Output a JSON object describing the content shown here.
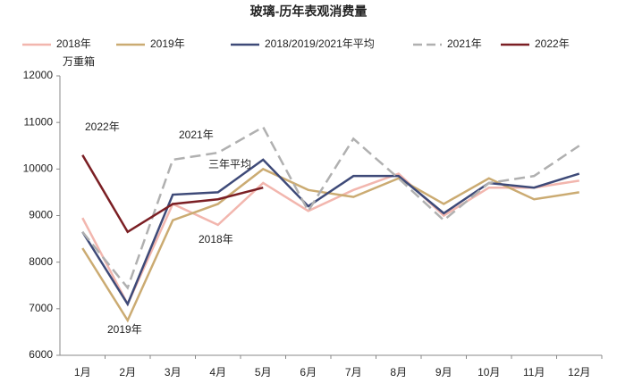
{
  "chart_data": {
    "type": "line",
    "title": "玻璃-历年表观消费量",
    "y_label": "万重箱",
    "categories": [
      "1月",
      "2月",
      "3月",
      "4月",
      "5月",
      "6月",
      "7月",
      "8月",
      "9月",
      "10月",
      "11月",
      "12月"
    ],
    "series": [
      {
        "name": "2018年",
        "color": "#f2b6ae",
        "dash": false,
        "values": [
          8950,
          7100,
          9250,
          8800,
          9700,
          9100,
          9550,
          9900,
          9000,
          9600,
          9600,
          9750
        ]
      },
      {
        "name": "2019年",
        "color": "#cbab72",
        "dash": false,
        "values": [
          8300,
          6750,
          8900,
          9250,
          10000,
          9550,
          9400,
          9800,
          9250,
          9800,
          9350,
          9500
        ]
      },
      {
        "name": "2018/2019/2021年平均",
        "color": "#3e4a78",
        "dash": false,
        "values": [
          8650,
          7100,
          9450,
          9500,
          10200,
          9200,
          9850,
          9850,
          9050,
          9700,
          9600,
          9900
        ]
      },
      {
        "name": "2021年",
        "color": "#b0b0b0",
        "dash": true,
        "values": [
          8650,
          7450,
          10200,
          10350,
          10900,
          9100,
          10650,
          9800,
          8900,
          9700,
          9850,
          10500
        ]
      },
      {
        "name": "2022年",
        "color": "#7b1f24",
        "dash": false,
        "values": [
          10300,
          8650,
          9250,
          9350,
          9600,
          null,
          null,
          null,
          null,
          null,
          null,
          null
        ]
      }
    ],
    "annotations": [
      "2022年",
      "2021年",
      "三年平均",
      "2018年",
      "2019年"
    ],
    "ylim": [
      6000,
      12000
    ],
    "yticks": [
      6000,
      7000,
      8000,
      9000,
      10000,
      11000,
      12000
    ],
    "grid": false
  }
}
